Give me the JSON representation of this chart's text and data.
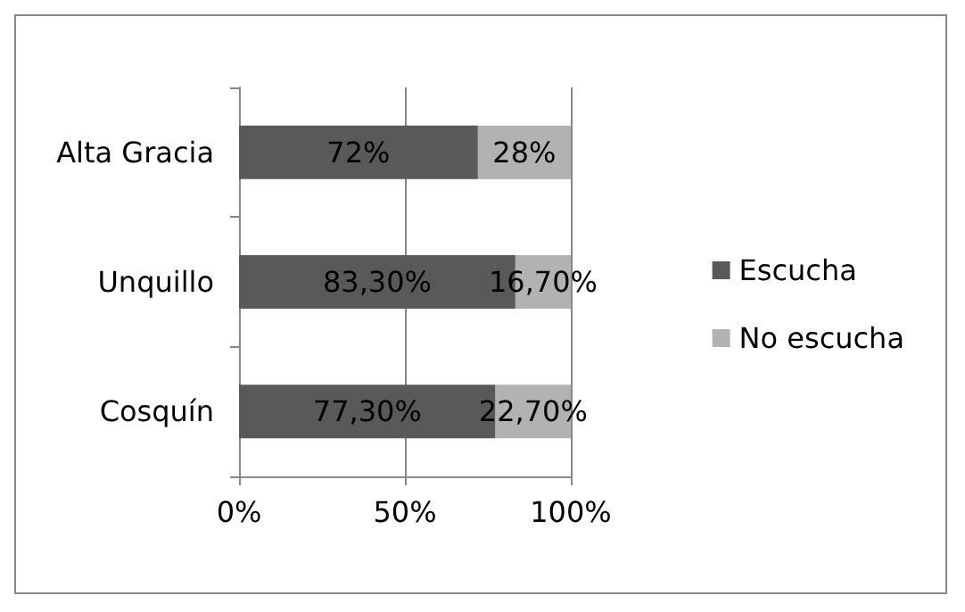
{
  "chart_data": {
    "type": "bar",
    "orientation": "horizontal",
    "stacked": true,
    "categories": [
      "Alta Gracia",
      "Unquillo",
      "Cosquín"
    ],
    "series": [
      {
        "name": "Escucha",
        "color": "#595959",
        "values": [
          72,
          83.3,
          77.3
        ],
        "value_labels": [
          "72%",
          "83,30%",
          "77,30%"
        ]
      },
      {
        "name": "No escucha",
        "color": "#b2b2b2",
        "values": [
          28,
          16.7,
          22.7
        ],
        "value_labels": [
          "28%",
          "16,70%",
          "22,70%"
        ]
      }
    ],
    "xlim": [
      0,
      100
    ],
    "xticks": [
      {
        "value": 0,
        "label": "0%"
      },
      {
        "value": 50,
        "label": "50%"
      },
      {
        "value": 100,
        "label": "100%"
      }
    ],
    "grid": "x",
    "legend": "right"
  }
}
